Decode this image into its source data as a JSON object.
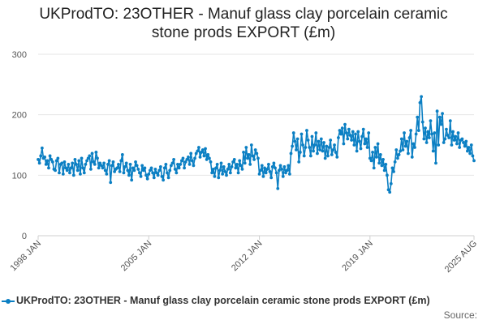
{
  "chart_data": {
    "type": "line",
    "title_line1": "UKProdTO: 23OTHER - Manuf glass clay porcelain ceramic",
    "title_line2": "stone prods EXPORT (£m)",
    "xlabel": "",
    "ylabel": "",
    "ylim": [
      0,
      300
    ],
    "y_ticks": [
      "0",
      "100",
      "200",
      "300"
    ],
    "x_tick_labels": [
      "1998 JAN",
      "2005 JAN",
      "2012 JAN",
      "2019 JAN",
      "2025 AUG"
    ],
    "x_range": [
      "1998-01",
      "2025-08"
    ],
    "grid": true,
    "legend_position": "bottom",
    "series": [
      {
        "name": "UKProdTO: 23OTHER - Manuf glass clay porcelain ceramic stone prods EXPORT (£m)",
        "color": "#0b7fc3",
        "annual_values": [
          {
            "year": 1998,
            "values": [
              126,
              120,
              132,
              145,
              128,
              130,
              118,
              124,
              112,
              132,
              126,
              122
            ]
          },
          {
            "year": 1999,
            "values": [
              110,
              108,
              124,
              128,
              104,
              118,
              120,
              102,
              122,
              112,
              108,
              118
            ]
          },
          {
            "year": 2000,
            "values": [
              104,
              112,
              120,
              100,
              126,
              118,
              108,
              124,
              102,
              128,
              112,
              104
            ]
          },
          {
            "year": 2001,
            "values": [
              118,
              124,
              128,
              132,
              110,
              136,
              122,
              118,
              138,
              128,
              112,
              120
            ]
          },
          {
            "year": 2002,
            "values": [
              116,
              112,
              120,
              108,
              102,
              118,
              124,
              88,
              116,
              122,
              106,
              110
            ]
          },
          {
            "year": 2003,
            "values": [
              112,
              118,
              106,
              124,
              134,
              104,
              114,
              120,
              108,
              100,
              118,
              92
            ]
          },
          {
            "year": 2004,
            "values": [
              112,
              108,
              122,
              116,
              110,
              104,
              98,
              116,
              108,
              112,
              100,
              94
            ]
          },
          {
            "year": 2005,
            "values": [
              102,
              108,
              112,
              104,
              96,
              110,
              104,
              100,
              108,
              114,
              98,
              92
            ]
          },
          {
            "year": 2006,
            "values": [
              112,
              118,
              104,
              96,
              108,
              116,
              120,
              126,
              110,
              104,
              118,
              112
            ]
          },
          {
            "year": 2007,
            "values": [
              118,
              124,
              128,
              112,
              122,
              126,
              130,
              118,
              136,
              124,
              116,
              128
            ]
          },
          {
            "year": 2008,
            "values": [
              136,
              140,
              146,
              130,
              138,
              142,
              132,
              144,
              126,
              134,
              128,
              122
            ]
          },
          {
            "year": 2009,
            "values": [
              104,
              110,
              98,
              112,
              118,
              96,
              108,
              120,
              102,
              114,
              106,
              100
            ]
          },
          {
            "year": 2010,
            "values": [
              110,
              118,
              104,
              114,
              122,
              126,
              112,
              118,
              104,
              124,
              116,
              110
            ]
          },
          {
            "year": 2011,
            "values": [
              138,
              120,
              146,
              128,
              134,
              118,
              150,
              132,
              126,
              142,
              136,
              128
            ]
          },
          {
            "year": 2012,
            "values": [
              102,
              108,
              116,
              98,
              112,
              104,
              110,
              118,
              106,
              96,
              114,
              120
            ]
          },
          {
            "year": 2013,
            "values": [
              112,
              104,
              78,
              108,
              116,
              110,
              98,
              114,
              104,
              108,
              116,
              102
            ]
          },
          {
            "year": 2014,
            "values": [
              136,
              148,
              170,
              156,
              142,
              160,
              122,
              138,
              168,
              150,
              132,
              146
            ]
          },
          {
            "year": 2015,
            "values": [
              174,
              158,
              146,
              132,
              164,
              140,
              150,
              170,
              136,
              156,
              142,
              160
            ]
          },
          {
            "year": 2016,
            "values": [
              140,
              154,
              128,
              148,
              132,
              146,
              158,
              134,
              142,
              150,
              138,
              130
            ]
          },
          {
            "year": 2017,
            "values": [
              162,
              174,
              168,
              178,
              152,
              184,
              170,
              160,
              176,
              166,
              158,
              172
            ]
          },
          {
            "year": 2018,
            "values": [
              150,
              168,
              140,
              172,
              156,
              144,
              164,
              176,
              152,
              160,
              146,
              170
            ]
          },
          {
            "year": 2019,
            "values": [
              128,
              124,
              138,
              112,
              146,
              130,
              152,
              120,
              134,
              116,
              126,
              108
            ]
          },
          {
            "year": 2020,
            "values": [
              118,
              100,
              76,
              72,
              86,
              112,
              106,
              122,
              142,
              128,
              134,
              140
            ]
          },
          {
            "year": 2021,
            "values": [
              160,
              142,
              170,
              148,
              156,
              136,
              162,
              174,
              130,
              152,
              146,
              168
            ]
          },
          {
            "year": 2022,
            "values": [
              196,
              174,
              220,
              230,
              188,
              160,
              178,
              154,
              172,
              162,
              190,
              168
            ]
          },
          {
            "year": 2023,
            "values": [
              140,
              170,
              120,
              206,
              150,
              196,
              184,
              202,
              154,
              160,
              176,
              166
            ]
          },
          {
            "year": 2024,
            "values": [
              162,
              190,
              150,
              172,
              158,
              164,
              152,
              170,
              146,
              158,
              160,
              154
            ]
          },
          {
            "year": 2025,
            "values": [
              148,
              156,
              140,
              146,
              136,
              150,
              132,
              124
            ]
          }
        ]
      }
    ]
  },
  "legend": {
    "label": "UKProdTO: 23OTHER - Manuf glass clay porcelain ceramic stone prods EXPORT (£m)"
  },
  "source": {
    "label": "Source:"
  }
}
